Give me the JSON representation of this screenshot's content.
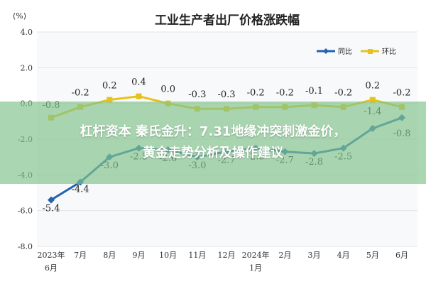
{
  "overlay": {
    "line1": "杠杆资本 秦氏金升：7.31地缘冲突刺激金价，",
    "line2": "黄金走势分析及操作建议"
  },
  "colors": {
    "yoy": "#2563b0",
    "mom": "#e8c21a",
    "axis_text": "#333333",
    "grid": "#e6e6e6",
    "plot_bg": "#f7f9fb"
  },
  "chart_data": {
    "type": "line",
    "title": "工业生产者出厂价格涨跌幅",
    "unit_label": "(%)",
    "categories": [
      "2023年\n6月",
      "7月",
      "8月",
      "9月",
      "10月",
      "11月",
      "12月",
      "2024年\n1月",
      "2月",
      "3月",
      "4月",
      "5月",
      "6月"
    ],
    "ylim": [
      -8.0,
      4.0
    ],
    "yticks": [
      "4.0",
      "2.0",
      "0.0",
      "-2.0",
      "-4.0",
      "-6.0",
      "-8.0"
    ],
    "ytick_values": [
      4,
      2,
      0,
      -2,
      -4,
      -6,
      -8
    ],
    "grid": true,
    "legend_position": "top-right",
    "series": [
      {
        "name": "同比",
        "values": [
          -5.4,
          -4.4,
          -3.0,
          -2.5,
          -2.6,
          -3.0,
          -2.7,
          -2.5,
          -2.7,
          -2.8,
          -2.5,
          -1.4,
          -0.8
        ],
        "labels": [
          "-5.4",
          "-4.4",
          "-3.0",
          "-2.5",
          "-2.6",
          "-3.0",
          "-2.7",
          "-2.5",
          "-2.7",
          "-2.8",
          "-2.5",
          "-1.4",
          "-0.8"
        ]
      },
      {
        "name": "环比",
        "values": [
          -0.8,
          -0.2,
          0.2,
          0.4,
          0.0,
          -0.3,
          -0.3,
          -0.2,
          -0.2,
          -0.1,
          -0.2,
          0.2,
          -0.2
        ],
        "labels": [
          "-0.8",
          "-0.2",
          "0.2",
          "0.4",
          "0.0",
          "-0.3",
          "-0.3",
          "-0.2",
          "-0.2",
          "-0.1",
          "-0.2",
          "0.2",
          "-0.2"
        ]
      }
    ]
  }
}
